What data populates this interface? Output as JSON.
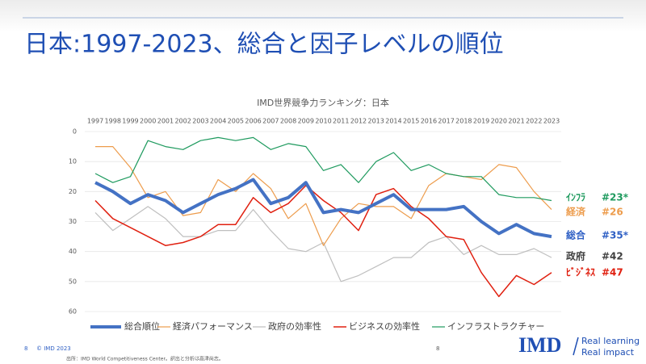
{
  "slide": {
    "title": "日本:1997-2023、総合と因子レベルの順位",
    "page_left": "8",
    "copyright": "© IMD 2023",
    "page_center": "8",
    "source": "出所：IMD World Competitiveness Center。訳出と分析は高津尚志。",
    "logo": "IMD",
    "tagline_1": "Real learning",
    "tagline_2": "Real impact"
  },
  "chart_data": {
    "type": "line",
    "title": "IMD世界競争力ランキング：日本",
    "categories": [
      "1997",
      "1998",
      "1999",
      "2000",
      "2001",
      "2002",
      "2003",
      "2004",
      "2005",
      "2006",
      "2007",
      "2008",
      "2009",
      "2010",
      "2011",
      "2012",
      "2013",
      "2014",
      "2015",
      "2016",
      "2017",
      "2018",
      "2019",
      "2020",
      "2021",
      "2022",
      "2023"
    ],
    "ylim": [
      0,
      60
    ],
    "yticks": [
      0,
      10,
      20,
      30,
      40,
      50,
      60
    ],
    "y_reversed": true,
    "grid": true,
    "series": [
      {
        "name": "総合順位",
        "color": "#4472c4",
        "width": 4,
        "values": [
          17,
          20,
          24,
          21,
          23,
          27,
          24,
          21,
          19,
          16,
          24,
          22,
          17,
          27,
          26,
          27,
          24,
          21,
          26,
          26,
          26,
          25,
          30,
          34,
          31,
          34,
          35
        ]
      },
      {
        "name": "経済パフォーマンス",
        "color": "#ed9c4c",
        "width": 1.2,
        "values": [
          5,
          5,
          12,
          22,
          20,
          28,
          27,
          16,
          20,
          14,
          19,
          29,
          24,
          38,
          29,
          24,
          25,
          25,
          29,
          18,
          14,
          15,
          16,
          11,
          12,
          20,
          26
        ]
      },
      {
        "name": "政府の効率性",
        "color": "#bfbfbf",
        "width": 1.2,
        "values": [
          27,
          33,
          29,
          25,
          29,
          35,
          35,
          33,
          33,
          26,
          33,
          39,
          40,
          37,
          50,
          48,
          45,
          42,
          42,
          37,
          35,
          41,
          38,
          41,
          41,
          39,
          42
        ]
      },
      {
        "name": "ビジネスの効率性",
        "color": "#e02010",
        "width": 1.5,
        "values": [
          23,
          29,
          32,
          35,
          38,
          37,
          35,
          31,
          31,
          22,
          27,
          24,
          18,
          23,
          27,
          33,
          21,
          19,
          25,
          29,
          35,
          36,
          47,
          55,
          48,
          51,
          47
        ]
      },
      {
        "name": "インフラストラクチャー",
        "color": "#1e9a5e",
        "width": 1.2,
        "values": [
          14,
          17,
          15,
          3,
          5,
          6,
          3,
          2,
          3,
          2,
          6,
          4,
          5,
          13,
          11,
          17,
          10,
          7,
          13,
          11,
          14,
          15,
          15,
          21,
          22,
          22,
          23
        ]
      }
    ],
    "annotations": [
      {
        "label": "ｲﾝﾌﾗ",
        "rank": "#23*",
        "color": "#1e9a5e"
      },
      {
        "label": "経済",
        "rank": "#26",
        "color": "#ed9c4c"
      },
      {
        "label": "総合",
        "rank": "#35*",
        "color": "#2e5fc4"
      },
      {
        "label": "政府",
        "rank": "#42",
        "color": "#404040"
      },
      {
        "label": "ﾋﾞｼﾞﾈｽ",
        "rank": "#47",
        "color": "#e02010"
      }
    ]
  }
}
